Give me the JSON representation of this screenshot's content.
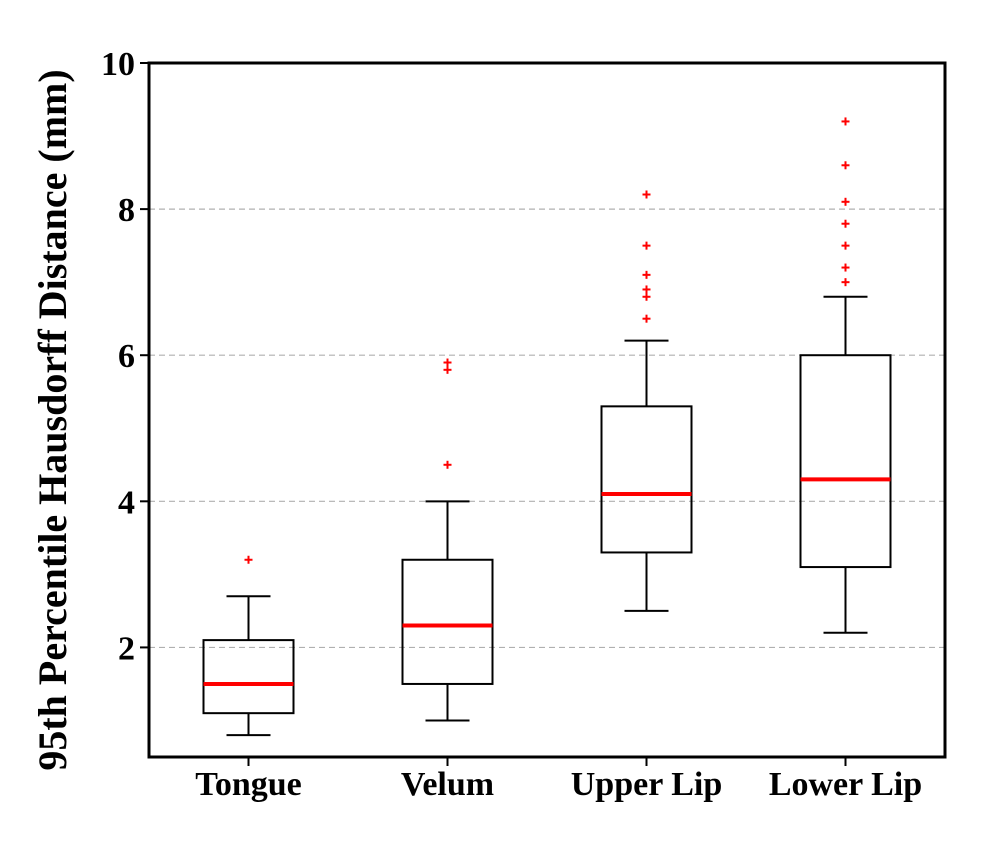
{
  "chart_data": {
    "type": "box",
    "title": "",
    "xlabel": "",
    "ylabel": "95th Percentile Hausdorff Distance (mm)",
    "ylim": [
      0.5,
      10
    ],
    "yticks": [
      2,
      4,
      6,
      8,
      10
    ],
    "grid": "horizontal-dashed",
    "categories": [
      "Tongue",
      "Velum",
      "Upper Lip",
      "Lower Lip"
    ],
    "boxes": [
      {
        "name": "Tongue",
        "whisker_low": 0.8,
        "q1": 1.1,
        "median": 1.5,
        "q3": 2.1,
        "whisker_high": 2.7,
        "outliers": [
          3.2
        ]
      },
      {
        "name": "Velum",
        "whisker_low": 1.0,
        "q1": 1.5,
        "median": 2.3,
        "q3": 3.2,
        "whisker_high": 4.0,
        "outliers": [
          4.5,
          5.8,
          5.9
        ]
      },
      {
        "name": "Upper Lip",
        "whisker_low": 2.5,
        "q1": 3.3,
        "median": 4.1,
        "q3": 5.3,
        "whisker_high": 6.2,
        "outliers": [
          6.5,
          6.8,
          6.9,
          7.1,
          7.5,
          8.2
        ]
      },
      {
        "name": "Lower Lip",
        "whisker_low": 2.2,
        "q1": 3.1,
        "median": 4.3,
        "q3": 6.0,
        "whisker_high": 6.8,
        "outliers": [
          7.0,
          7.2,
          7.5,
          7.8,
          8.1,
          8.6,
          9.2
        ]
      }
    ],
    "colors": {
      "box": "#000000",
      "median": "#ff0000",
      "outlier": "#ff0000",
      "grid": "#b0b0b0"
    }
  }
}
